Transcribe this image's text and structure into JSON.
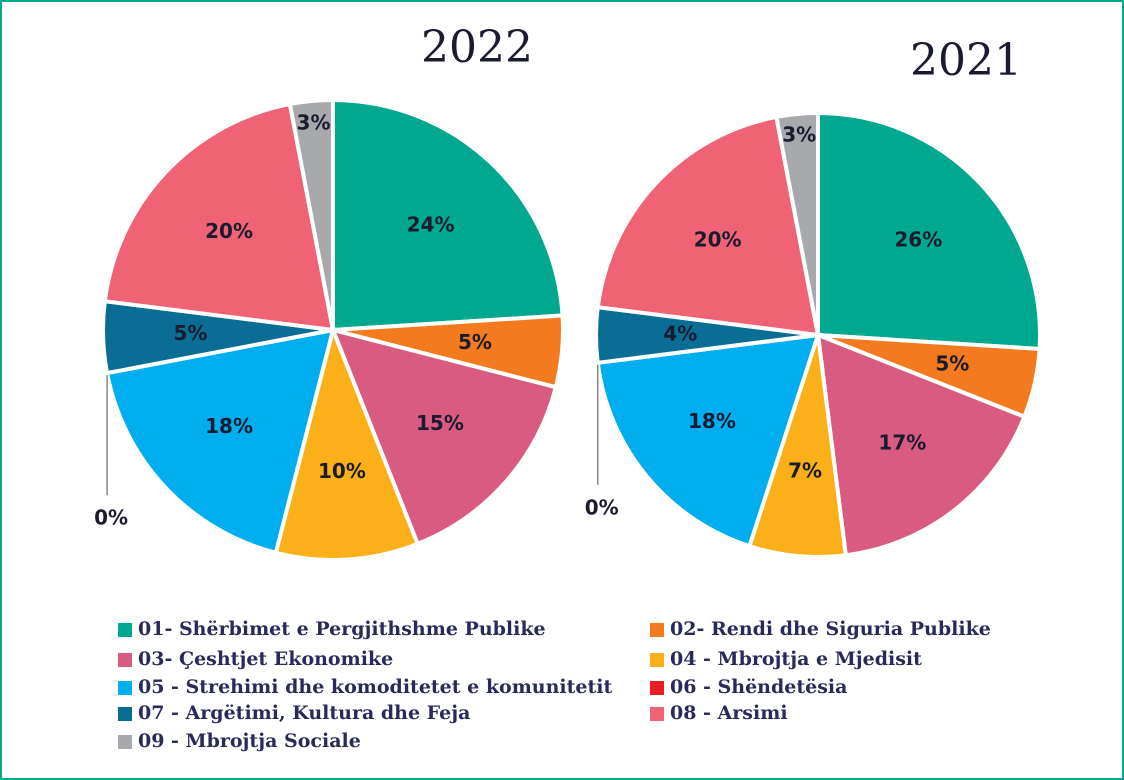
{
  "chart_data": [
    {
      "type": "pie",
      "title": "2022",
      "categories": [
        "01- Shërbimet e Pergjithshme Publike",
        "02- Rendi dhe Siguria Publike",
        "03- Çeshtjet Ekonomike",
        "04 - Mbrojtja e Mjedisit",
        "05 - Strehimi dhe komoditetet e komunitetit",
        "06 - Shëndetësia",
        "07 - Argëtimi, Kultura dhe Feja",
        "08 - Arsimi",
        "09 - Mbrojtja Sociale"
      ],
      "colors": [
        "#00a88f",
        "#f47a20",
        "#d95b82",
        "#fbb01a",
        "#00aeef",
        "#ed1c24",
        "#0a6e94",
        "#f06374",
        "#a7a9ac"
      ],
      "values": [
        24,
        5,
        15,
        10,
        18,
        0,
        5,
        20,
        3
      ],
      "value_labels": [
        "24%",
        "5%",
        "15%",
        "10%",
        "18%",
        "0%",
        "5%",
        "20%",
        "3%"
      ]
    },
    {
      "type": "pie",
      "title": "2021",
      "values": [
        26,
        5,
        17,
        7,
        18,
        0,
        4,
        20,
        3
      ],
      "value_labels": [
        "26%",
        "5%",
        "17%",
        "7%",
        "18%",
        "0%",
        "4%",
        "20%",
        "3%"
      ]
    }
  ]
}
